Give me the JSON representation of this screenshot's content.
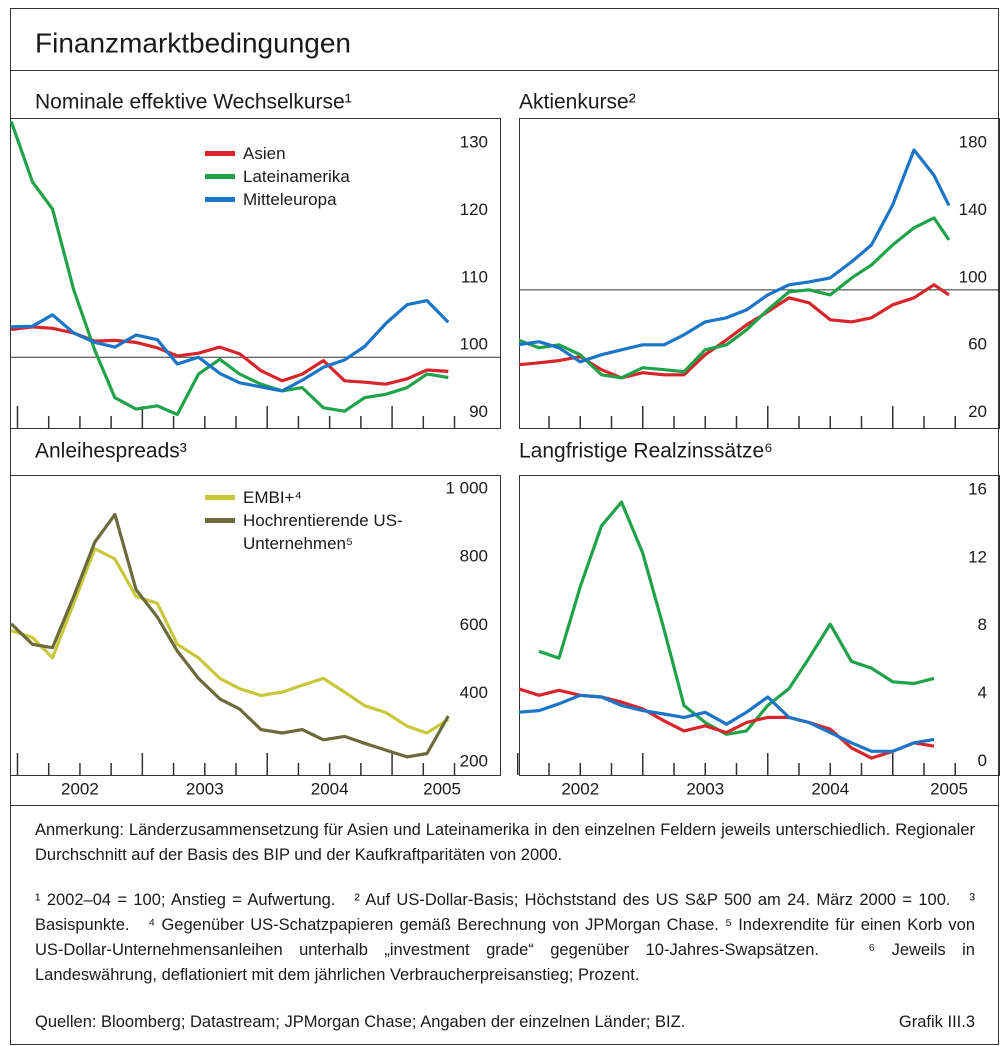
{
  "title": "Finanzmarktbedingungen",
  "chart_data": [
    {
      "type": "line",
      "title": "Nominale effektive Wechselkurse¹",
      "x": [
        2001.95,
        2002.12,
        2002.28,
        2002.45,
        2002.62,
        2002.78,
        2002.95,
        2003.12,
        2003.28,
        2003.45,
        2003.62,
        2003.78,
        2003.95,
        2004.12,
        2004.28,
        2004.45,
        2004.62,
        2004.78,
        2004.95,
        2005.12,
        2005.28,
        2005.45
      ],
      "xlim": [
        2001.94,
        2005.6
      ],
      "ylim": [
        89.5,
        135.5
      ],
      "yticks": [
        90,
        100,
        110,
        120,
        130
      ],
      "hline": 100,
      "series": [
        {
          "name": "Asien",
          "color": "#d7262b",
          "values": [
            104.1,
            104.5,
            104.3,
            103.6,
            102.4,
            102.5,
            102.2,
            101.4,
            100.2,
            100.6,
            101.5,
            100.5,
            98,
            96.5,
            97.5,
            99.5,
            96.5,
            96.3,
            96,
            96.8,
            98.1,
            97.9
          ]
        },
        {
          "name": "Lateinamerika",
          "color": "#1fa24a",
          "values": [
            135,
            126,
            122,
            110,
            101,
            94,
            92.3,
            92.8,
            91.5,
            97.5,
            99.7,
            97.5,
            96,
            95,
            95.5,
            92.5,
            92,
            94,
            94.5,
            95.5,
            97.5,
            97
          ]
        },
        {
          "name": "Mitteleuropa",
          "color": "#1a75c6",
          "values": [
            104.5,
            104.6,
            106.3,
            103.6,
            102.2,
            101.5,
            103.3,
            102.6,
            99,
            100,
            97.6,
            96.2,
            95.6,
            95,
            96.6,
            98.5,
            99.6,
            101.6,
            105,
            107.8,
            108.4,
            105.2
          ]
        }
      ]
    },
    {
      "type": "line",
      "title": "Aktienkurse²",
      "x": [
        2002.0,
        2002.17,
        2002.33,
        2002.5,
        2002.67,
        2002.83,
        2003.0,
        2003.17,
        2003.33,
        2003.5,
        2003.67,
        2003.83,
        2004.0,
        2004.17,
        2004.33,
        2004.5,
        2004.67,
        2004.83,
        2005.0,
        2005.17,
        2005.33,
        2005.45
      ],
      "xlim": [
        2002.01,
        2005.65
      ],
      "ylim": [
        18,
        202
      ],
      "yticks": [
        20,
        60,
        100,
        140,
        180
      ],
      "hline": 100,
      "series": [
        {
          "color": "#d7262b",
          "values": [
            55.5,
            56.7,
            58,
            60.3,
            52.6,
            47.8,
            50.8,
            49.6,
            49.6,
            61.5,
            70.3,
            79.2,
            87,
            95.3,
            92.3,
            82.2,
            81,
            83.4,
            91.1,
            95.3,
            103,
            97
          ]
        },
        {
          "color": "#1fa24a",
          "values": [
            70.3,
            65.6,
            67.4,
            61.5,
            49.6,
            47.8,
            53.8,
            52.6,
            51.4,
            64.4,
            67.4,
            76.3,
            88.1,
            98.8,
            100,
            97,
            107,
            114.8,
            126.7,
            136.8,
            142.7,
            129.6
          ]
        },
        {
          "color": "#1a75c6",
          "values": [
            67.4,
            69.2,
            65.6,
            57.3,
            61.5,
            64.4,
            67.4,
            67.4,
            73.3,
            81,
            83.4,
            88.1,
            97,
            103,
            104.7,
            107.1,
            116.6,
            126.7,
            150.4,
            183,
            168,
            150
          ]
        }
      ]
    },
    {
      "type": "line",
      "title": "Anleihespreads³",
      "x": [
        2001.95,
        2002.12,
        2002.28,
        2002.45,
        2002.62,
        2002.78,
        2002.95,
        2003.12,
        2003.28,
        2003.45,
        2003.62,
        2003.78,
        2003.95,
        2004.12,
        2004.28,
        2004.45,
        2004.62,
        2004.78,
        2004.95,
        2005.12,
        2005.28,
        2005.45
      ],
      "xlim": [
        2001.94,
        2005.6
      ],
      "ylim": [
        197,
        1076
      ],
      "yticks": [
        200,
        400,
        600,
        800,
        {
          "value": 1000,
          "label": "1 000"
        }
      ],
      "xticks": [
        2002,
        2003,
        2004,
        2005
      ],
      "series": [
        {
          "name": "EMBI+⁴",
          "color": "#c8c83c",
          "values": [
            620,
            600,
            540,
            700,
            860,
            830,
            720,
            700,
            580,
            540,
            480,
            450,
            430,
            440,
            460,
            480,
            440,
            400,
            380,
            340,
            320,
            360
          ]
        },
        {
          "name": "Hochrentierende US-Unternehmen⁵",
          "color": "#6b6a3c",
          "values": [
            640,
            580,
            570,
            720,
            880,
            960,
            740,
            660,
            560,
            480,
            420,
            390,
            330,
            320,
            330,
            300,
            310,
            290,
            270,
            250,
            260,
            370
          ]
        }
      ]
    },
    {
      "type": "line",
      "title": "Langfristige Realzinssätze⁶",
      "x": [
        2002.0,
        2002.17,
        2002.33,
        2002.5,
        2002.67,
        2002.83,
        2003.0,
        2003.17,
        2003.33,
        2003.5,
        2003.67,
        2003.83,
        2004.0,
        2004.17,
        2004.33,
        2004.5,
        2004.67,
        2004.83,
        2005.0,
        2005.17,
        2005.33
      ],
      "xlim": [
        2002.01,
        2005.65
      ],
      "ylim": [
        -0.1,
        17.6
      ],
      "yticks": [
        0,
        4,
        8,
        12,
        16
      ],
      "xticks": [
        2002,
        2003,
        2004,
        2005
      ],
      "series": [
        {
          "color": "#1fa24a",
          "values": [
            null,
            7.2,
            6.8,
            11,
            14.6,
            16,
            13,
            8.5,
            4,
            3,
            2.3,
            2.5,
            4,
            5,
            6.8,
            8.8,
            6.6,
            6.2,
            5.4,
            5.3,
            5.6
          ]
        },
        {
          "color": "#d7262b",
          "values": [
            5,
            4.6,
            4.9,
            4.6,
            4.5,
            4.2,
            3.8,
            3.1,
            2.5,
            2.8,
            2.4,
            3,
            3.3,
            3.3,
            3,
            2.6,
            1.5,
            0.9,
            1.3,
            1.8,
            1.6
          ]
        },
        {
          "color": "#1a75c6",
          "values": [
            3.6,
            3.7,
            4.1,
            4.6,
            4.5,
            4,
            3.7,
            3.5,
            3.3,
            3.6,
            2.9,
            3.6,
            4.5,
            3.3,
            3,
            2.4,
            1.8,
            1.3,
            1.3,
            1.8,
            2
          ]
        }
      ]
    }
  ],
  "notes": {
    "remark": "Anmerkung: Länderzusammensetzung für Asien und Lateinamerika in den einzelnen Feldern jeweils unterschiedlich. Regionaler Durchschnitt auf der Basis des BIP und der Kaufkraftparitäten von 2000.",
    "footnotes": "¹ 2002–04 = 100; Anstieg = Aufwertung.   ² Auf US-Dollar-Basis; Höchststand des US S&P 500 am 24. März 2000 = 100.   ³ Basispunkte.   ⁴ Gegenüber US-Schatzpapieren gemäß Berechnung von JPMorgan Chase. ⁵ Indexrendite für einen Korb von US-Dollar-Unternehmensanleihen unterhalb „investment grade“ gegenüber 10-Jahres-Swapsätzen.   ⁶ Jeweils in Landeswährung, deflationiert mit dem jährlichen Verbraucherpreisanstieg; Prozent.",
    "sources": "Quellen: Bloomberg; Datastream; JPMorgan Chase; Angaben der einzelnen Länder; BIZ.",
    "label": "Grafik III.3"
  }
}
